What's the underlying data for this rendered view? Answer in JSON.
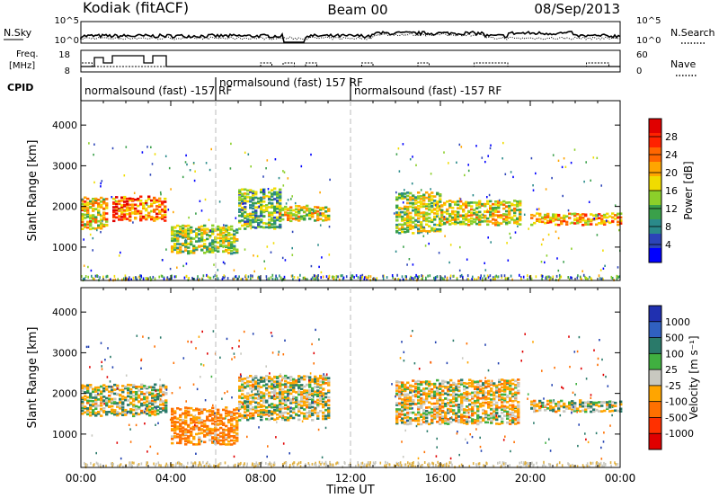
{
  "header": {
    "station": "Kodiak (fitACF)",
    "beam": "Beam 00",
    "date": "08/Sep/2013"
  },
  "status_panels": {
    "nsky_label": "N.Sky",
    "nsearch_label": "N.Search",
    "count_ticks_left": [
      "10^5",
      "10^0"
    ],
    "count_ticks_right": [
      "10^5",
      "10^0"
    ],
    "freq_label_line1": "Freq.",
    "freq_label_line2": "[MHz]",
    "freq_ticks": [
      "18",
      "8"
    ],
    "nave_label": "Nave",
    "nave_ticks": [
      "60",
      "0"
    ],
    "cpid_label": "CPID",
    "cpid_segments": [
      {
        "label": "normalsound (fast) -157 RF",
        "start_hour": 0.0,
        "end_hour": 6.0
      },
      {
        "label": "normalsound (fast) 157 RF",
        "start_hour": 6.0,
        "end_hour": 12.0
      },
      {
        "label": "normalsound (fast) -157 RF",
        "start_hour": 12.0,
        "end_hour": 24.0
      }
    ]
  },
  "chart_data": [
    {
      "type": "heatmap",
      "panel": "power",
      "ylabel": "Slant Range [km]",
      "xlabel": "Time UT",
      "x_ticks": [
        "00:00",
        "04:00",
        "08:00",
        "12:00",
        "16:00",
        "20:00",
        "00:00"
      ],
      "xlim_hours": [
        0,
        24
      ],
      "y_ticks": [
        "1000",
        "2000",
        "3000",
        "4000"
      ],
      "ylim": [
        180,
        4600
      ],
      "colorbar": {
        "label": "Power [dB]",
        "ticks": [
          "4",
          "8",
          "12",
          "16",
          "20",
          "24",
          "28"
        ],
        "range": [
          0,
          30
        ],
        "colors": [
          "#0000ff",
          "#2c44b8",
          "#2a8a8a",
          "#3aa04a",
          "#8ccf2a",
          "#f0dc00",
          "#ffa500",
          "#ff6600",
          "#ff2200",
          "#e00000"
        ]
      },
      "echo_regions": [
        {
          "t0": 0.0,
          "t1": 1.1,
          "r0": 1500,
          "r1": 2300,
          "power": 18
        },
        {
          "t0": 1.4,
          "t1": 3.8,
          "r0": 1700,
          "r1": 2300,
          "power": 22
        },
        {
          "t0": 4.0,
          "t1": 7.0,
          "r0": 900,
          "r1": 1600,
          "power": 14
        },
        {
          "t0": 7.0,
          "t1": 8.8,
          "r0": 1500,
          "r1": 2500,
          "power": 12
        },
        {
          "t0": 8.8,
          "t1": 11.0,
          "r0": 1700,
          "r1": 2100,
          "power": 16
        },
        {
          "t0": 14.0,
          "t1": 16.0,
          "r0": 1400,
          "r1": 2400,
          "power": 14
        },
        {
          "t0": 16.0,
          "t1": 19.5,
          "r0": 1600,
          "r1": 2200,
          "power": 16
        },
        {
          "t0": 20.0,
          "t1": 24.0,
          "r0": 1600,
          "r1": 1900,
          "power": 20
        }
      ]
    },
    {
      "type": "heatmap",
      "panel": "velocity",
      "ylabel": "Slant Range [km]",
      "xlabel": "Time UT",
      "x_ticks": [
        "00:00",
        "04:00",
        "08:00",
        "12:00",
        "16:00",
        "20:00",
        "00:00"
      ],
      "xlim_hours": [
        0,
        24
      ],
      "y_ticks": [
        "1000",
        "2000",
        "3000",
        "4000"
      ],
      "ylim": [
        180,
        4600
      ],
      "colorbar": {
        "label": "Velocity [m s⁻¹]",
        "ticks": [
          "1000",
          "500",
          "100",
          "25",
          "-25",
          "-100",
          "-500",
          "-1000"
        ],
        "colors": [
          "#2030b0",
          "#3060c0",
          "#2a7a6a",
          "#40b040",
          "#c8c8c0",
          "#ffa500",
          "#ff7000",
          "#ff3000",
          "#e00000"
        ]
      },
      "echo_regions": [
        {
          "t0": 0.0,
          "t1": 3.8,
          "r0": 1500,
          "r1": 2300,
          "velocity": 0
        },
        {
          "t0": 4.0,
          "t1": 7.0,
          "r0": 800,
          "r1": 1700,
          "velocity": -120
        },
        {
          "t0": 7.0,
          "t1": 11.0,
          "r0": 1400,
          "r1": 2500,
          "velocity": 0
        },
        {
          "t0": 14.0,
          "t1": 19.5,
          "r0": 1300,
          "r1": 2400,
          "velocity": -30
        },
        {
          "t0": 20.0,
          "t1": 24.0,
          "r0": 1600,
          "r1": 1900,
          "velocity": 0
        }
      ]
    }
  ],
  "x_axis": {
    "title": "Time UT",
    "ticks": [
      "00:00",
      "04:00",
      "08:00",
      "12:00",
      "16:00",
      "20:00",
      "00:00"
    ]
  }
}
